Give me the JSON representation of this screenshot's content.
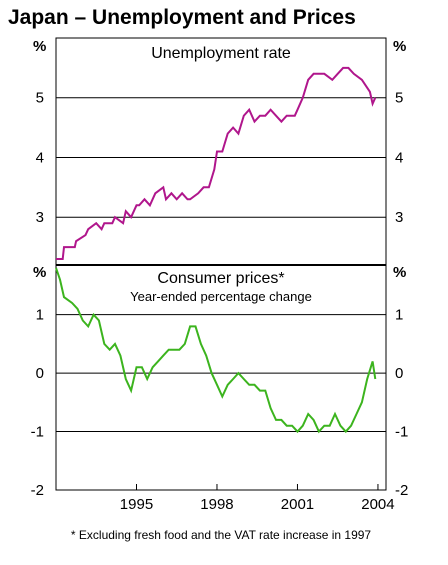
{
  "title": "Japan – Unemployment and Prices",
  "footnote": "* Excluding fresh food and the VAT rate increase in 1997",
  "colors": {
    "unemployment": "#b0168c",
    "prices": "#3cb41e",
    "grid": "#000000"
  },
  "chart_data": [
    {
      "type": "line",
      "title": "Unemployment rate",
      "unit": "%",
      "ylim": [
        2.2,
        6
      ],
      "yticks": [
        3,
        4,
        5
      ],
      "ytick_labels": [
        "3",
        "4",
        "5"
      ],
      "grid": true,
      "series": [
        {
          "x": [
            1992.0,
            1992.25,
            1992.3,
            1992.7,
            1992.75,
            1993.1,
            1993.2,
            1993.5,
            1993.7,
            1993.8,
            1994.1,
            1994.2,
            1994.5,
            1994.6,
            1994.8,
            1995.0,
            1995.1,
            1995.3,
            1995.5,
            1995.7,
            1996.0,
            1996.1,
            1996.3,
            1996.5,
            1996.7,
            1996.9,
            1997.0,
            1997.3,
            1997.5,
            1997.7,
            1997.9,
            1998.0,
            1998.2,
            1998.4,
            1998.6,
            1998.8,
            1999.0,
            1999.2,
            1999.4,
            1999.6,
            1999.8,
            2000.0,
            2000.2,
            2000.4,
            2000.6,
            2000.9,
            2001.0,
            2001.2,
            2001.4,
            2001.6,
            2001.8,
            2002.0,
            2002.3,
            2002.5,
            2002.7,
            2002.9,
            2003.1,
            2003.4,
            2003.7,
            2003.8,
            2003.9
          ],
          "values": [
            2.3,
            2.3,
            2.5,
            2.5,
            2.6,
            2.7,
            2.8,
            2.9,
            2.8,
            2.9,
            2.9,
            3.0,
            2.9,
            3.1,
            3.0,
            3.2,
            3.2,
            3.3,
            3.2,
            3.4,
            3.5,
            3.3,
            3.4,
            3.3,
            3.4,
            3.3,
            3.3,
            3.4,
            3.5,
            3.5,
            3.8,
            4.1,
            4.1,
            4.4,
            4.5,
            4.4,
            4.7,
            4.8,
            4.6,
            4.7,
            4.7,
            4.8,
            4.7,
            4.6,
            4.7,
            4.7,
            4.8,
            5.0,
            5.3,
            5.4,
            5.4,
            5.4,
            5.3,
            5.4,
            5.5,
            5.5,
            5.4,
            5.3,
            5.1,
            4.9,
            5.0
          ]
        }
      ]
    },
    {
      "type": "line",
      "title": "Consumer prices*",
      "subtitle": "Year-ended percentage change",
      "unit": "%",
      "ylim": [
        -2,
        1.85
      ],
      "yticks": [
        -2,
        -1,
        0,
        1
      ],
      "ytick_labels": [
        "-2",
        "-1",
        "0",
        "1"
      ],
      "grid": true,
      "xlim": [
        1992.0,
        2004.3
      ],
      "xticks": [
        1995,
        1998,
        2001,
        2004
      ],
      "xtick_labels": [
        "1995",
        "1998",
        "2001",
        "2004"
      ],
      "series": [
        {
          "x": [
            1992.0,
            1992.15,
            1992.3,
            1992.6,
            1992.8,
            1993.0,
            1993.2,
            1993.4,
            1993.6,
            1993.8,
            1994.0,
            1994.2,
            1994.4,
            1994.6,
            1994.8,
            1995.0,
            1995.2,
            1995.4,
            1995.6,
            1995.8,
            1996.0,
            1996.2,
            1996.4,
            1996.6,
            1996.8,
            1997.0,
            1997.2,
            1997.4,
            1997.6,
            1997.8,
            1998.0,
            1998.2,
            1998.4,
            1998.6,
            1998.8,
            1999.0,
            1999.2,
            1999.4,
            1999.6,
            1999.8,
            2000.0,
            2000.2,
            2000.4,
            2000.6,
            2000.8,
            2001.0,
            2001.2,
            2001.4,
            2001.6,
            2001.8,
            2002.0,
            2002.2,
            2002.4,
            2002.6,
            2002.8,
            2003.0,
            2003.2,
            2003.4,
            2003.6,
            2003.8,
            2003.9
          ],
          "values": [
            1.8,
            1.6,
            1.3,
            1.2,
            1.1,
            0.9,
            0.8,
            1.0,
            0.9,
            0.5,
            0.4,
            0.5,
            0.3,
            -0.1,
            -0.3,
            0.1,
            0.1,
            -0.1,
            0.1,
            0.2,
            0.3,
            0.4,
            0.4,
            0.4,
            0.5,
            0.8,
            0.8,
            0.5,
            0.3,
            0.0,
            -0.2,
            -0.4,
            -0.2,
            -0.1,
            0.0,
            -0.1,
            -0.2,
            -0.2,
            -0.3,
            -0.3,
            -0.6,
            -0.8,
            -0.8,
            -0.9,
            -0.9,
            -1.0,
            -0.9,
            -0.7,
            -0.8,
            -1.0,
            -0.9,
            -0.9,
            -0.7,
            -0.9,
            -1.0,
            -0.9,
            -0.7,
            -0.5,
            -0.1,
            0.2,
            -0.1
          ]
        }
      ]
    }
  ]
}
